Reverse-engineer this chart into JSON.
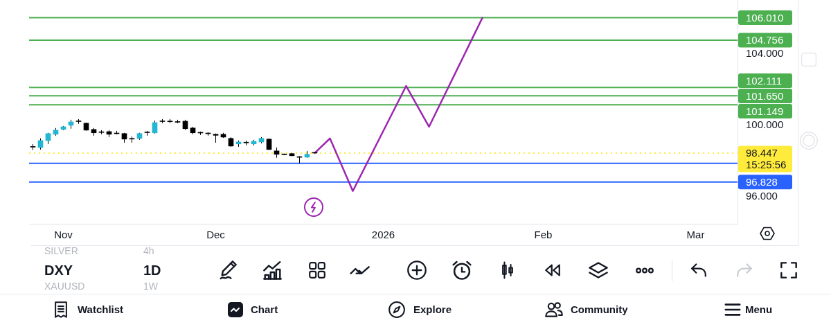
{
  "chart_data": {
    "type": "candlestick",
    "categories": [
      null,
      null,
      null,
      null,
      "Nov",
      null,
      null,
      null,
      null,
      null,
      null,
      null,
      null,
      null,
      null,
      null,
      null,
      null,
      null,
      null,
      null,
      null,
      null,
      null,
      "Dec",
      null,
      null,
      null,
      null,
      null,
      null,
      null,
      null,
      null,
      null,
      null,
      null,
      null,
      null,
      null,
      null,
      null,
      null,
      null,
      null,
      null,
      "2026",
      null,
      null,
      null,
      null,
      null,
      null,
      null,
      null,
      null,
      null,
      null,
      null,
      null,
      null,
      null,
      null,
      null,
      null,
      null,
      null,
      "Feb",
      null,
      null,
      null,
      null,
      null,
      null,
      null,
      null,
      null,
      null,
      null,
      null,
      null,
      null,
      null,
      null,
      null,
      null,
      null,
      "Mar",
      null,
      null,
      null,
      null,
      null
    ],
    "ohlc": [
      [
        98.8,
        98.95,
        98.62,
        98.78
      ],
      [
        98.76,
        99.27,
        98.65,
        99.15
      ],
      [
        99.15,
        99.58,
        98.96,
        99.54
      ],
      [
        99.5,
        99.85,
        99.42,
        99.73
      ],
      [
        99.77,
        99.96,
        99.73,
        99.92
      ],
      [
        100.0,
        100.31,
        99.81,
        100.19
      ],
      [
        100.23,
        100.35,
        100.08,
        100.21
      ],
      [
        100.12,
        100.15,
        99.7,
        99.73
      ],
      [
        99.77,
        99.85,
        99.42,
        99.58
      ],
      [
        99.62,
        99.73,
        99.5,
        99.6
      ],
      [
        99.65,
        99.73,
        99.34,
        99.5
      ],
      [
        99.55,
        99.69,
        99.5,
        99.53
      ],
      [
        99.54,
        99.58,
        99.03,
        99.23
      ],
      [
        99.25,
        99.38,
        99.03,
        99.23
      ],
      [
        99.27,
        99.58,
        99.19,
        99.54
      ],
      [
        99.59,
        99.69,
        99.42,
        99.61
      ],
      [
        99.58,
        100.27,
        99.54,
        100.15
      ],
      [
        100.21,
        100.35,
        100.12,
        100.23
      ],
      [
        100.24,
        100.35,
        100.12,
        100.2
      ],
      [
        100.21,
        100.31,
        100.12,
        100.17
      ],
      [
        100.23,
        100.31,
        99.73,
        99.81
      ],
      [
        99.85,
        99.92,
        99.5,
        99.58
      ],
      [
        99.59,
        99.65,
        99.46,
        99.57
      ],
      [
        99.55,
        99.61,
        99.42,
        99.53
      ],
      [
        99.5,
        99.54,
        99.03,
        99.44
      ],
      [
        99.5,
        99.58,
        99.3,
        99.34
      ],
      [
        99.27,
        99.34,
        98.8,
        98.84
      ],
      [
        98.96,
        99.15,
        98.8,
        99.07
      ],
      [
        99.04,
        99.15,
        98.88,
        99.02
      ],
      [
        98.96,
        99.19,
        98.88,
        99.11
      ],
      [
        99.07,
        99.34,
        98.99,
        99.27
      ],
      [
        99.23,
        99.27,
        98.61,
        98.65
      ],
      [
        98.57,
        98.76,
        98.19,
        98.38
      ],
      [
        98.4,
        98.42,
        98.34,
        98.36
      ],
      [
        98.42,
        98.46,
        98.27,
        98.3
      ],
      [
        98.25,
        98.27,
        97.88,
        98.21
      ],
      [
        98.22,
        98.57,
        98.19,
        98.38
      ],
      [
        98.47,
        98.49,
        98.42,
        98.45
      ],
      null,
      null,
      null,
      null,
      null,
      null,
      null,
      null,
      null,
      null,
      null,
      null,
      null,
      null,
      null,
      null,
      null,
      null,
      null,
      null,
      null,
      null,
      null,
      null,
      null,
      null,
      null,
      null,
      null,
      null,
      null,
      null,
      null,
      null,
      null,
      null,
      null,
      null,
      null,
      null,
      null,
      null,
      null,
      null,
      null,
      null,
      null,
      null,
      null,
      null,
      null,
      null,
      null,
      null,
      null
    ],
    "colors": [
      "#000000",
      "#22b7d3",
      "#22b7d3",
      "#22b7d3",
      "#22b7d3",
      "#22b7d3",
      "#000000",
      "#000000",
      "#000000",
      "#000000",
      "#000000",
      "#000000",
      "#000000",
      "#000000",
      "#22b7d3",
      "#000000",
      "#22b7d3",
      "#000000",
      "#000000",
      "#000000",
      "#000000",
      "#000000",
      "#000000",
      "#000000",
      "#000000",
      "#000000",
      "#000000",
      "#22b7d3",
      "#000000",
      "#22b7d3",
      "#22b7d3",
      "#000000",
      "#000000",
      "#000000",
      "#000000",
      "#000000",
      "#22b7d3",
      "#000000",
      null,
      null,
      null,
      null,
      null,
      null,
      null,
      null,
      null,
      null,
      null,
      null,
      null,
      null,
      null,
      null,
      null,
      null,
      null,
      null,
      null,
      null,
      null,
      null,
      null,
      null,
      null,
      null,
      null,
      null,
      null,
      null,
      null,
      null,
      null,
      null,
      null,
      null,
      null,
      null,
      null,
      null,
      null,
      null,
      null,
      null,
      null,
      null,
      null,
      null,
      null,
      null,
      null,
      null,
      null
    ],
    "series": [
      {
        "type": "line",
        "color": "#9c27b0",
        "values": [
          null,
          null,
          null,
          null,
          null,
          null,
          null,
          null,
          null,
          null,
          null,
          null,
          null,
          null,
          null,
          null,
          null,
          null,
          null,
          null,
          null,
          null,
          null,
          null,
          null,
          null,
          null,
          null,
          null,
          null,
          null,
          null,
          null,
          null,
          null,
          null,
          null,
          98.45,
          null,
          99.27,
          null,
          null,
          96.33,
          null,
          null,
          null,
          null,
          null,
          null,
          102.2,
          null,
          null,
          99.92,
          null,
          null,
          null,
          null,
          null,
          null,
          106.0,
          null,
          null,
          null,
          null,
          null,
          null,
          null,
          null,
          null,
          null,
          null,
          null,
          null,
          null,
          null,
          null,
          null,
          null,
          null,
          null,
          null,
          null,
          null,
          null,
          null,
          null,
          null,
          null,
          null,
          null,
          null,
          null,
          null
        ]
      }
    ],
    "ylim": [
      94.5,
      107
    ],
    "yticks": [
      {
        "value": 96,
        "label": "96.000"
      },
      {
        "value": 100,
        "label": "100.000"
      },
      {
        "value": 104,
        "label": "104.000"
      }
    ],
    "ref_lines": [
      {
        "axis": "y",
        "value": 106.01,
        "label": "106.010",
        "color": "#4caf50"
      },
      {
        "axis": "y",
        "value": 104.756,
        "label": "104.756",
        "color": "#4caf50"
      },
      {
        "axis": "y",
        "value": 102.111,
        "label": "102.111",
        "color": "#4caf50"
      },
      {
        "axis": "y",
        "value": 101.65,
        "label": "101.650",
        "color": "#4caf50"
      },
      {
        "axis": "y",
        "value": 101.149,
        "label": "101.149",
        "color": "#4caf50"
      },
      {
        "axis": "y",
        "value": 98.447,
        "label": "98.447",
        "color": "#ffeb3b",
        "line_style": "dotted"
      },
      {
        "axis": "y",
        "value": 97.88,
        "color": "#2962ff"
      },
      {
        "axis": "y",
        "value": 96.828,
        "label": "96.828",
        "color": "#2962ff"
      }
    ],
    "annotations": [
      "15:25:56",
      "SILVER",
      "4h",
      "DXY",
      "1D",
      "XAUUSD",
      "1W",
      "Watchlist",
      "Chart",
      "Explore",
      "Community",
      "Menu"
    ]
  }
}
